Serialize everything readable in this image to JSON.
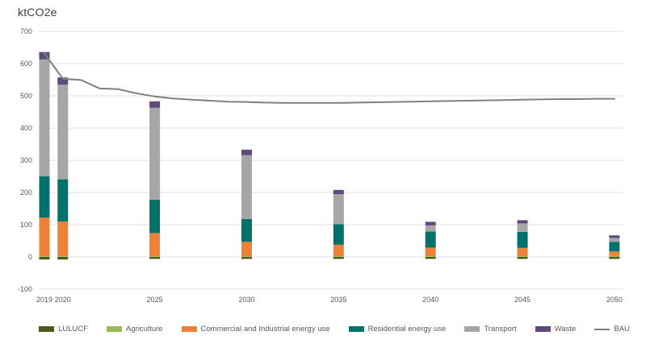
{
  "chart": {
    "title": "ktCO2e"
  },
  "chart_data": {
    "type": "bar",
    "subtype": "stacked-columns-with-line-overlay",
    "title": "ktCO2e",
    "ylabel": "ktCO2e",
    "ylim": [
      -100,
      700
    ],
    "ytick_interval": 100,
    "yticks": [
      700,
      600,
      500,
      400,
      300,
      200,
      100,
      0,
      -100
    ],
    "grid": true,
    "gridline_color": "#e2e2e2",
    "axis_text_color": "#595959",
    "legend_position": "bottom",
    "bar_categories": [
      2019,
      2020,
      2025,
      2030,
      2035,
      2040,
      2045,
      2050
    ],
    "series": [
      {
        "name": "LULUCF",
        "color": "#4c5a1f",
        "values": [
          -8,
          -8,
          -6,
          -6,
          -6,
          -6,
          -6,
          -6
        ]
      },
      {
        "name": "Agriculture",
        "color": "#9bbb59",
        "values": [
          2,
          2,
          2,
          2,
          2,
          2,
          2,
          3
        ]
      },
      {
        "name": "Commercial and Industrial energy use",
        "color": "#ef8136",
        "values": [
          120,
          108,
          72,
          45,
          36,
          27,
          26,
          14
        ]
      },
      {
        "name": "Residential energy use",
        "color": "#00716b",
        "values": [
          128,
          131,
          104,
          71,
          64,
          50,
          50,
          30
        ]
      },
      {
        "name": "Transport",
        "color": "#a6a6a6",
        "values": [
          363,
          294,
          285,
          198,
          93,
          19,
          26,
          12
        ]
      },
      {
        "name": "Waste",
        "color": "#5f497a",
        "values": [
          23,
          22,
          20,
          17,
          13,
          11,
          10,
          8
        ]
      }
    ],
    "line_series": {
      "name": "BAU",
      "color": "#7f7f7f",
      "x": [
        2019,
        2020,
        2021,
        2022,
        2023,
        2024,
        2025,
        2026,
        2027,
        2028,
        2029,
        2030,
        2031,
        2032,
        2033,
        2034,
        2035,
        2036,
        2037,
        2038,
        2039,
        2040,
        2041,
        2042,
        2043,
        2044,
        2045,
        2046,
        2047,
        2048,
        2049,
        2050
      ],
      "values": [
        632,
        553,
        549,
        523,
        521,
        508,
        498,
        492,
        488,
        485,
        482,
        481,
        479,
        478,
        478,
        478,
        478,
        479,
        480,
        481,
        482,
        483,
        484,
        485,
        486,
        487,
        488,
        489,
        490,
        490,
        491,
        491
      ]
    },
    "legend": [
      "LULUCF",
      "Agriculture",
      "Commercial and Industrial energy use",
      "Residential energy use",
      "Transport",
      "Waste",
      "BAU"
    ]
  }
}
